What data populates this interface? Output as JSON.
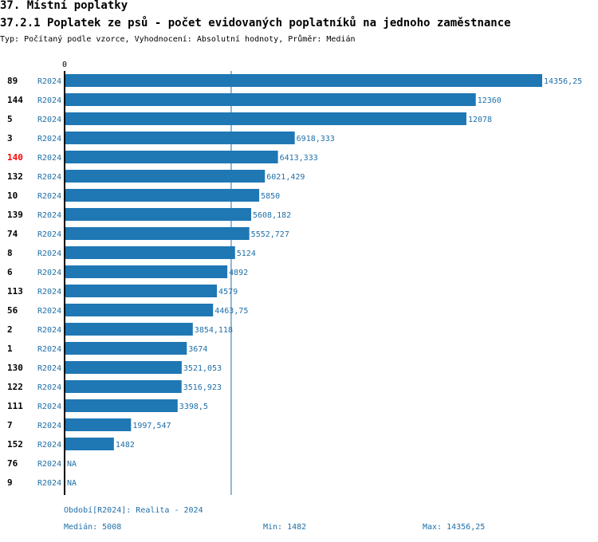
{
  "header": {
    "section_title": "37. Místní poplatky",
    "chart_title": "37.2.1 Poplatek ze psů - počet evidovaných poplatníků na jednoho zaměstnance",
    "subtitle": "Typ: Počítaný podle vzorce, Vyhodnocení: Absolutní hodnoty, Průměr: Medián"
  },
  "colors": {
    "bar": "#1f77b4",
    "label": "#1f6fa8",
    "highlight": "#ff0000",
    "axis": "#000000",
    "median_line": "#1f6fa8"
  },
  "chart_data": {
    "type": "bar",
    "orientation": "horizontal",
    "title": "37.2.1 Poplatek ze psů - počet evidovaných poplatníků na jednoho zaměstnance",
    "xlim": [
      0,
      14356.25
    ],
    "x_tick_labels": [
      "0"
    ],
    "median": 5008,
    "highlighted_category": "140",
    "series_label": "R2024",
    "categories": [
      "89",
      "144",
      "5",
      "3",
      "140",
      "132",
      "10",
      "139",
      "74",
      "8",
      "6",
      "113",
      "56",
      "2",
      "1",
      "130",
      "122",
      "111",
      "7",
      "152",
      "76",
      "9"
    ],
    "values": [
      14356.25,
      12360,
      12078,
      6918.333,
      6413.333,
      6021.429,
      5850,
      5608.182,
      5552.727,
      5124,
      4892,
      4579,
      4463.75,
      3854.118,
      3674,
      3521.053,
      3516.923,
      3398.5,
      1997.547,
      1482,
      null,
      null
    ],
    "value_labels": [
      "14356,25",
      "12360",
      "12078",
      "6918,333",
      "6413,333",
      "6021,429",
      "5850",
      "5608,182",
      "5552,727",
      "5124",
      "4892",
      "4579",
      "4463,75",
      "3854,118",
      "3674",
      "3521,053",
      "3516,923",
      "3398,5",
      "1997,547",
      "1482",
      "NA",
      "NA"
    ]
  },
  "footer": {
    "period": "Období[R2024]: Realita - 2024",
    "median": "Medián: 5008",
    "min": "Min: 1482",
    "max": "Max: 14356,25"
  }
}
